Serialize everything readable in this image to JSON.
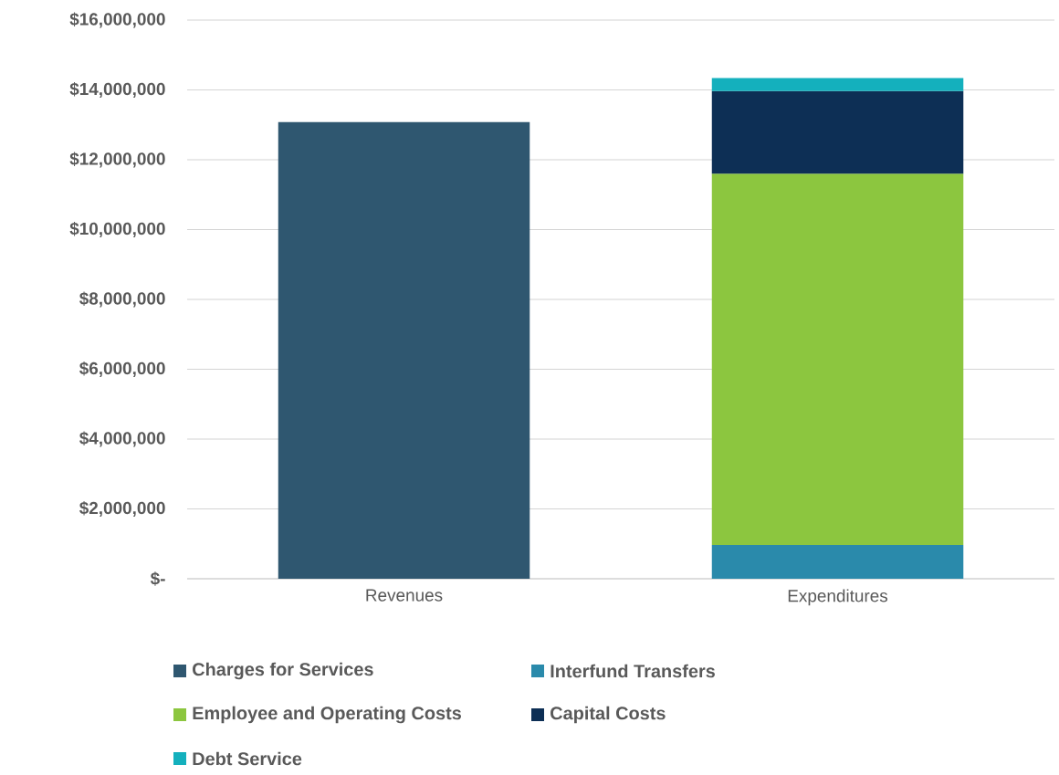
{
  "chart_data": {
    "type": "bar",
    "stacked": true,
    "categories": [
      "Revenues",
      "Expenditures"
    ],
    "series": [
      {
        "name": "Charges for Services",
        "color": "#2f5770",
        "values": [
          13080000,
          null
        ]
      },
      {
        "name": "Interfund Transfers",
        "color": "#2a8aab",
        "values": [
          null,
          970000
        ]
      },
      {
        "name": "Employee and Operating Costs",
        "color": "#8cc63f",
        "values": [
          null,
          10630000
        ]
      },
      {
        "name": "Capital Costs",
        "color": "#0d2f55",
        "values": [
          null,
          2370000
        ]
      },
      {
        "name": "Debt Service",
        "color": "#14b0bd",
        "values": [
          null,
          370000
        ]
      }
    ],
    "ylim": [
      0,
      16000000
    ],
    "yticks": [
      {
        "value": 0,
        "label": "$-"
      },
      {
        "value": 2000000,
        "label": "$2,000,000"
      },
      {
        "value": 4000000,
        "label": "$4,000,000"
      },
      {
        "value": 6000000,
        "label": "$6,000,000"
      },
      {
        "value": 8000000,
        "label": "$8,000,000"
      },
      {
        "value": 10000000,
        "label": "$10,000,000"
      },
      {
        "value": 12000000,
        "label": "$12,000,000"
      },
      {
        "value": 14000000,
        "label": "$14,000,000"
      },
      {
        "value": 16000000,
        "label": "$16,000,000"
      }
    ],
    "grid": "y",
    "legend": "bottom"
  }
}
